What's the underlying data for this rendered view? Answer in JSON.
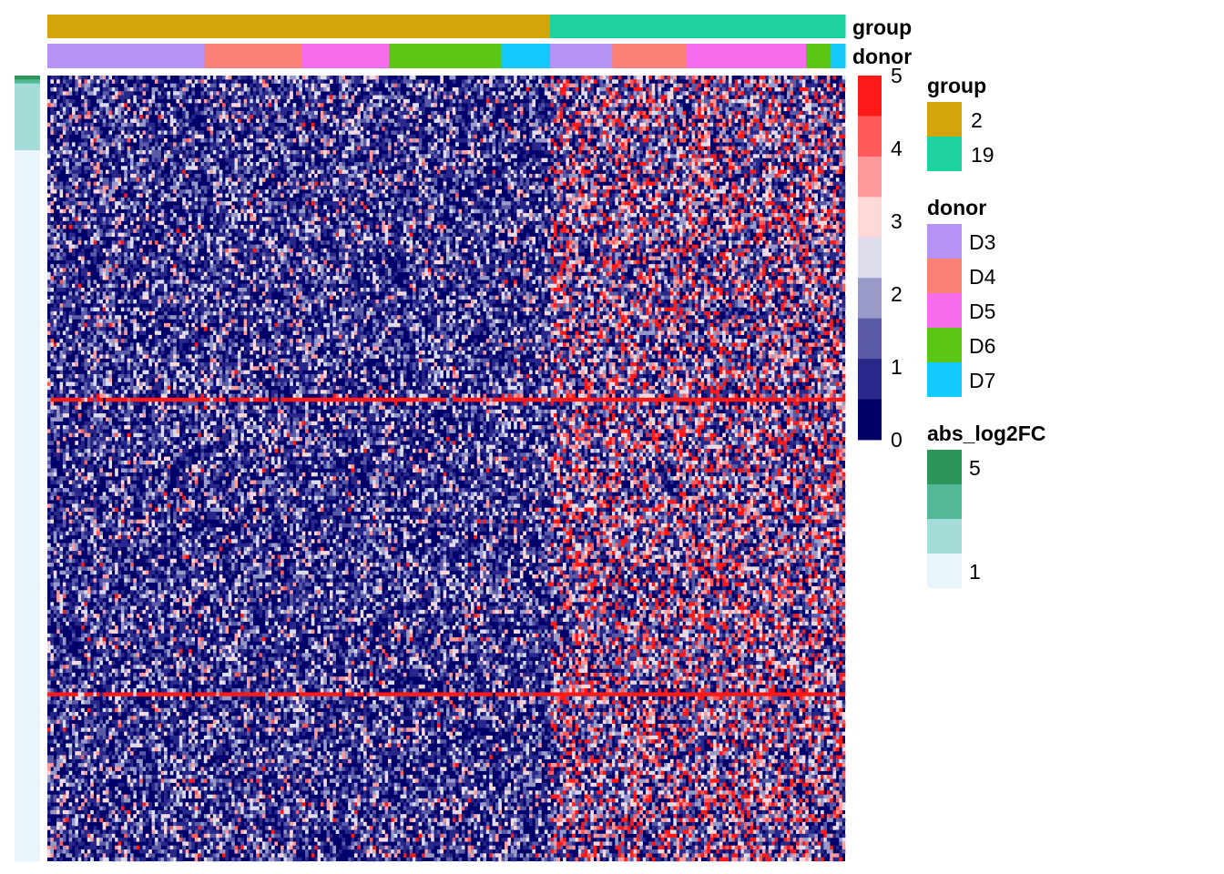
{
  "chart_data": {
    "type": "heatmap",
    "title": "",
    "annotation_row_labels": [
      "group",
      "donor"
    ],
    "column_annotations": {
      "group": [
        {
          "level": "2",
          "fraction": 0.63
        },
        {
          "level": "19",
          "fraction": 0.37
        }
      ],
      "donor": [
        {
          "level": "D3",
          "fraction": 0.197
        },
        {
          "level": "D4",
          "fraction": 0.122
        },
        {
          "level": "D5",
          "fraction": 0.109
        },
        {
          "level": "D6",
          "fraction": 0.141
        },
        {
          "level": "D7",
          "fraction": 0.061
        },
        {
          "level": "D3",
          "fraction": 0.078
        },
        {
          "level": "D4",
          "fraction": 0.093
        },
        {
          "level": "D5",
          "fraction": 0.15
        },
        {
          "level": "D6",
          "fraction": 0.031
        },
        {
          "level": "D7",
          "fraction": 0.018
        }
      ]
    },
    "value_scale": {
      "min": 0,
      "max": 5,
      "ticks": [
        "5",
        "4",
        "3",
        "2",
        "1",
        "0"
      ],
      "colors": [
        "#ff1a1a",
        "#ff5a5a",
        "#ff9a9a",
        "#ffd8d8",
        "#dcdcec",
        "#9a9ac8",
        "#5a5aa6",
        "#28288a",
        "#00006a"
      ]
    },
    "row_annotation": {
      "name": "abs_log2FC",
      "range": [
        1,
        5
      ]
    },
    "n_rows": 200,
    "n_cols": 260,
    "approx_cell_value_mean": {
      "group_2": 0.6,
      "group_19": 1.2
    },
    "highlight_rows_fraction": [
      0.408,
      0.785
    ]
  },
  "legends": {
    "group": {
      "title": "group",
      "items": [
        {
          "label": "2",
          "color": "#d4a50a"
        },
        {
          "label": "19",
          "color": "#1ed2a0"
        }
      ]
    },
    "donor": {
      "title": "donor",
      "items": [
        {
          "label": "D3",
          "color": "#b493f5"
        },
        {
          "label": "D4",
          "color": "#fa7f74"
        },
        {
          "label": "D5",
          "color": "#f76cec"
        },
        {
          "label": "D6",
          "color": "#5bc714"
        },
        {
          "label": "D7",
          "color": "#13c8fb"
        }
      ]
    },
    "abs_log2FC": {
      "title": "abs_log2FC",
      "tick_labels": [
        "5",
        "1"
      ],
      "colors": [
        "#2c9659",
        "#52b898",
        "#a4dcd9",
        "#e9f5fa"
      ]
    }
  }
}
